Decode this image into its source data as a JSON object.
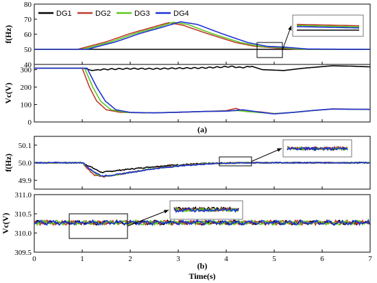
{
  "colors": {
    "DG1": "#000000",
    "DG2": "#c0392b",
    "DG3": "#5ac81e",
    "DG4": "#1f2fd6"
  },
  "legend": [
    "DG1",
    "DG2",
    "DG3",
    "DG4"
  ],
  "captions": {
    "a": "(a)",
    "b": "(b)"
  },
  "xlabel": "Time(s)",
  "xticks": [
    "0",
    "1",
    "2",
    "3",
    "4",
    "5",
    "6",
    "7"
  ],
  "chart_data": [
    {
      "type": "line",
      "ylabel": "f(Hz)",
      "xlim": [
        0,
        7
      ],
      "ylim": [
        40,
        80
      ],
      "yticks": [
        "40",
        "50",
        "60",
        "70",
        "80"
      ],
      "legend_placement": "top-left",
      "series": [
        {
          "name": "DG1",
          "points": [
            [
              0,
              50
            ],
            [
              7,
              50
            ]
          ]
        },
        {
          "name": "DG2",
          "points": [
            [
              0,
              50
            ],
            [
              0.9,
              50
            ],
            [
              1.5,
              55
            ],
            [
              2.0,
              60.5
            ],
            [
              2.5,
              65
            ],
            [
              2.8,
              67.7
            ],
            [
              3.1,
              66
            ],
            [
              3.6,
              60.5
            ],
            [
              4.2,
              54.5
            ],
            [
              4.6,
              52
            ],
            [
              5.0,
              51
            ],
            [
              5.5,
              50
            ],
            [
              7,
              50
            ]
          ]
        },
        {
          "name": "DG3",
          "points": [
            [
              0,
              50
            ],
            [
              1.0,
              50
            ],
            [
              1.6,
              55
            ],
            [
              2.1,
              60.5
            ],
            [
              2.6,
              65
            ],
            [
              2.9,
              68
            ],
            [
              3.2,
              66.5
            ],
            [
              3.7,
              60.5
            ],
            [
              4.3,
              54.5
            ],
            [
              4.7,
              52
            ],
            [
              5.1,
              51.2
            ],
            [
              5.6,
              50
            ],
            [
              7,
              50
            ]
          ]
        },
        {
          "name": "DG4",
          "points": [
            [
              0,
              50
            ],
            [
              1.1,
              50
            ],
            [
              1.7,
              55
            ],
            [
              2.2,
              60.5
            ],
            [
              2.7,
              65
            ],
            [
              3.05,
              68.3
            ],
            [
              3.4,
              66.5
            ],
            [
              3.9,
              60.5
            ],
            [
              4.45,
              54.5
            ],
            [
              4.85,
              52
            ],
            [
              5.2,
              51.5
            ],
            [
              5.7,
              50.2
            ],
            [
              7,
              50
            ]
          ]
        }
      ]
    },
    {
      "type": "line",
      "ylabel": "Vc(V)",
      "xlim": [
        0,
        7
      ],
      "ylim": [
        0,
        330
      ],
      "yticks": [
        "0",
        "100",
        "200",
        "300"
      ],
      "series": [
        {
          "name": "DG1",
          "points": [
            [
              0,
              308
            ],
            [
              1.05,
              308
            ],
            [
              1.2,
              295
            ],
            [
              1.35,
              300
            ],
            [
              1.6,
              303
            ],
            [
              2.0,
              306
            ],
            [
              2.5,
              305
            ],
            [
              3.0,
              308
            ],
            [
              3.5,
              310
            ],
            [
              3.9,
              315
            ],
            [
              4.1,
              318
            ],
            [
              4.3,
              312
            ],
            [
              4.55,
              318
            ],
            [
              4.75,
              300
            ],
            [
              5.2,
              295
            ],
            [
              5.6,
              308
            ],
            [
              6.2,
              322
            ],
            [
              6.6,
              320
            ],
            [
              7,
              316
            ]
          ]
        },
        {
          "name": "DG2",
          "points": [
            [
              0,
              308
            ],
            [
              1.0,
              308
            ],
            [
              1.15,
              200
            ],
            [
              1.3,
              120
            ],
            [
              1.5,
              70
            ],
            [
              1.8,
              55
            ],
            [
              2.3,
              52
            ],
            [
              3.0,
              55
            ],
            [
              3.5,
              60
            ],
            [
              4.0,
              65
            ],
            [
              4.2,
              78
            ],
            [
              4.4,
              60
            ],
            [
              4.7,
              58
            ],
            [
              5.0,
              48
            ],
            [
              5.4,
              55
            ],
            [
              5.8,
              65
            ],
            [
              6.2,
              75
            ],
            [
              7,
              72
            ]
          ]
        },
        {
          "name": "DG3",
          "points": [
            [
              0,
              308
            ],
            [
              1.05,
              308
            ],
            [
              1.22,
              200
            ],
            [
              1.38,
              120
            ],
            [
              1.6,
              70
            ],
            [
              1.9,
              55
            ],
            [
              2.4,
              52
            ],
            [
              3.0,
              56
            ],
            [
              3.5,
              60
            ],
            [
              4.0,
              63
            ],
            [
              4.25,
              65
            ],
            [
              4.5,
              58
            ],
            [
              5.0,
              48
            ],
            [
              5.4,
              55
            ],
            [
              5.8,
              65
            ],
            [
              6.2,
              74
            ],
            [
              7,
              72
            ]
          ]
        },
        {
          "name": "DG4",
          "points": [
            [
              0,
              308
            ],
            [
              1.1,
              308
            ],
            [
              1.3,
              200
            ],
            [
              1.48,
              120
            ],
            [
              1.7,
              70
            ],
            [
              2.0,
              55
            ],
            [
              2.5,
              52
            ],
            [
              3.0,
              56
            ],
            [
              3.5,
              60
            ],
            [
              4.0,
              62
            ],
            [
              4.35,
              70
            ],
            [
              4.6,
              60
            ],
            [
              5.0,
              46
            ],
            [
              5.4,
              55
            ],
            [
              5.8,
              66
            ],
            [
              6.2,
              74
            ],
            [
              7,
              72
            ]
          ]
        }
      ]
    },
    {
      "type": "line",
      "ylabel": "f(Hz)",
      "xlim": [
        0,
        7
      ],
      "ylim": [
        49.85,
        50.15
      ],
      "yticks": [
        "49.9",
        "50.0",
        "50.1"
      ],
      "series": [
        {
          "name": "DG1",
          "points": [
            [
              0,
              50
            ],
            [
              1.0,
              50
            ],
            [
              1.15,
              49.98
            ],
            [
              1.4,
              49.945
            ],
            [
              1.7,
              49.955
            ],
            [
              2.2,
              49.97
            ],
            [
              2.8,
              49.985
            ],
            [
              3.5,
              49.995
            ],
            [
              4.2,
              50
            ],
            [
              7,
              50
            ]
          ]
        },
        {
          "name": "DG2",
          "points": [
            [
              0,
              50
            ],
            [
              1.0,
              50
            ],
            [
              1.1,
              49.97
            ],
            [
              1.25,
              49.93
            ],
            [
              1.45,
              49.92
            ],
            [
              1.8,
              49.935
            ],
            [
              2.3,
              49.96
            ],
            [
              2.9,
              49.98
            ],
            [
              3.6,
              49.995
            ],
            [
              4.3,
              50
            ],
            [
              7,
              50
            ]
          ]
        },
        {
          "name": "DG3",
          "points": [
            [
              0,
              50
            ],
            [
              1.0,
              50
            ],
            [
              1.15,
              49.965
            ],
            [
              1.35,
              49.925
            ],
            [
              1.55,
              49.925
            ],
            [
              1.9,
              49.94
            ],
            [
              2.4,
              49.963
            ],
            [
              3.0,
              49.982
            ],
            [
              3.7,
              49.995
            ],
            [
              4.4,
              50
            ],
            [
              7,
              50
            ]
          ]
        },
        {
          "name": "DG4",
          "points": [
            [
              0,
              50
            ],
            [
              1.02,
              50
            ],
            [
              1.18,
              49.96
            ],
            [
              1.4,
              49.925
            ],
            [
              1.6,
              49.928
            ],
            [
              2.0,
              49.945
            ],
            [
              2.5,
              49.966
            ],
            [
              3.1,
              49.984
            ],
            [
              3.8,
              49.996
            ],
            [
              4.5,
              50
            ],
            [
              7,
              50
            ]
          ]
        }
      ]
    },
    {
      "type": "line",
      "ylabel": "Vc(V)",
      "xlim": [
        0,
        7
      ],
      "ylim": [
        309.5,
        311
      ],
      "yticks": [
        "309.5",
        "310.0",
        "310.5",
        "311.0"
      ],
      "series": [
        {
          "name": "DG1",
          "baseline": 310.27
        },
        {
          "name": "DG2",
          "baseline": 310.27
        },
        {
          "name": "DG3",
          "baseline": 310.27
        },
        {
          "name": "DG4",
          "baseline": 310.27
        }
      ]
    }
  ]
}
